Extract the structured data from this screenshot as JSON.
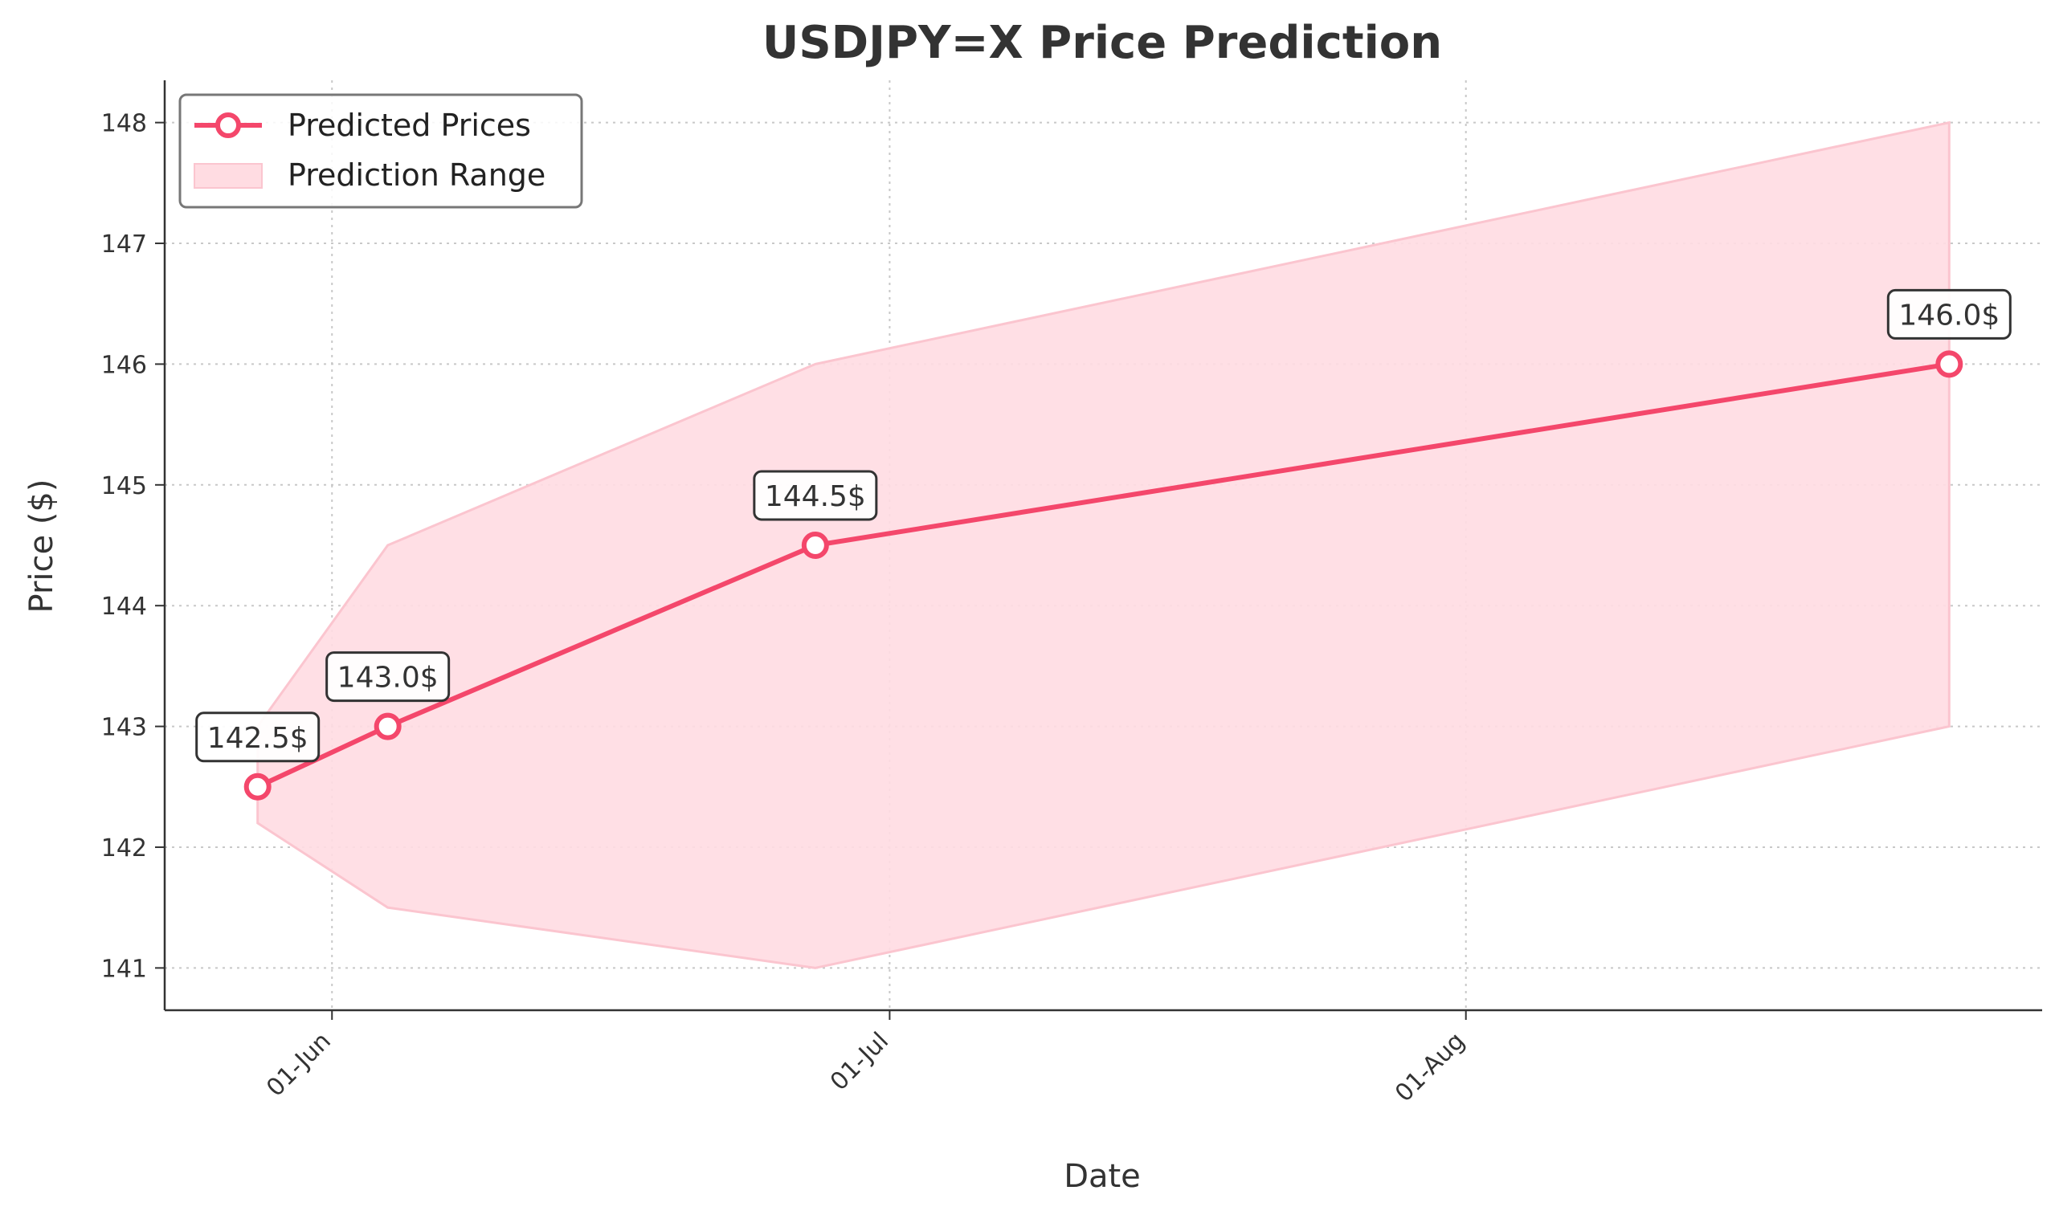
{
  "chart_data": {
    "type": "line",
    "title": "USDJPY=X Price Prediction",
    "xlabel": "Date",
    "ylabel": "Price ($)",
    "x_ticks": [
      {
        "date": "2024-06-01",
        "label": "01-Jun"
      },
      {
        "date": "2024-07-01",
        "label": "01-Jul"
      },
      {
        "date": "2024-08-01",
        "label": "01-Aug"
      }
    ],
    "y_ticks": [
      141,
      142,
      143,
      144,
      145,
      146,
      147,
      148
    ],
    "xlim": [
      "2024-05-23",
      "2024-09-01"
    ],
    "ylim": [
      140.65,
      148.35
    ],
    "grid": true,
    "legend_position": "top-left",
    "series": [
      {
        "name": "Predicted Prices",
        "color": "#f4476b",
        "points": [
          {
            "x": "2024-05-28",
            "y": 142.5,
            "label": "142.5$"
          },
          {
            "x": "2024-06-04",
            "y": 143.0,
            "label": "143.0$"
          },
          {
            "x": "2024-06-27",
            "y": 144.5,
            "label": "144.5$"
          },
          {
            "x": "2024-08-27",
            "y": 146.0,
            "label": "146.0$"
          }
        ]
      }
    ],
    "band": {
      "name": "Prediction Range",
      "color": "#ffdce2",
      "edge_color": "#fbc5cf",
      "points": [
        {
          "x": "2024-05-28",
          "low": 142.2,
          "high": 143.0
        },
        {
          "x": "2024-06-04",
          "low": 141.5,
          "high": 144.5
        },
        {
          "x": "2024-06-27",
          "low": 141.0,
          "high": 146.0
        },
        {
          "x": "2024-08-27",
          "low": 143.0,
          "high": 148.0
        }
      ]
    }
  }
}
